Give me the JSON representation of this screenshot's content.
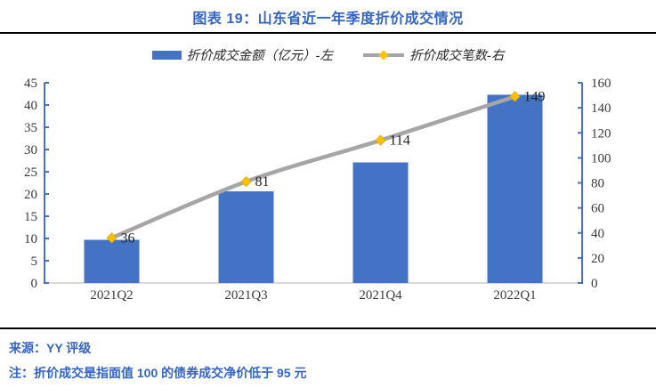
{
  "header": {
    "title": "图表 19：山东省近一年季度折价成交情况"
  },
  "footer": {
    "source": "来源：YY 评级",
    "note": "注：折价成交是指面值 100 的债券成交净价低于 95 元"
  },
  "colors": {
    "accent_blue": "#3465C2",
    "bar_blue": "#4472C4",
    "line_gray": "#A6A6A6",
    "marker_gold": "#FFC000",
    "axis_blue": "#4472C4",
    "baseline_gray": "#D9D9D9",
    "tick_label": "#3B3B3B",
    "data_label": "#1F1F1F",
    "divider_black": "#000000"
  },
  "chart_data": {
    "type": "bar+line combo",
    "title": "图表 19：山东省近一年季度折价成交情况",
    "categories": [
      "2021Q2",
      "2021Q3",
      "2021Q4",
      "2022Q1"
    ],
    "series": [
      {
        "name": "折价成交金额（亿元）-左",
        "type": "bar",
        "axis": "left",
        "values": [
          9.7,
          20.6,
          27.1,
          42.3
        ],
        "color": "#4472C4"
      },
      {
        "name": "折价成交笔数-右",
        "type": "line",
        "axis": "right",
        "values": [
          36,
          81,
          114,
          149
        ],
        "data_labels": [
          "36",
          "81",
          "114",
          "149"
        ],
        "color": "#A6A6A6",
        "marker": "diamond",
        "marker_color": "#FFC000"
      }
    ],
    "left_axis": {
      "min": 0,
      "max": 45,
      "step": 5,
      "ticks": [
        0,
        5,
        10,
        15,
        20,
        25,
        30,
        35,
        40,
        45
      ]
    },
    "right_axis": {
      "min": 0,
      "max": 160,
      "step": 20,
      "ticks": [
        0,
        20,
        40,
        60,
        80,
        100,
        120,
        140,
        160
      ]
    },
    "grid": false,
    "legend_position": "top",
    "line_smoothed": true
  }
}
